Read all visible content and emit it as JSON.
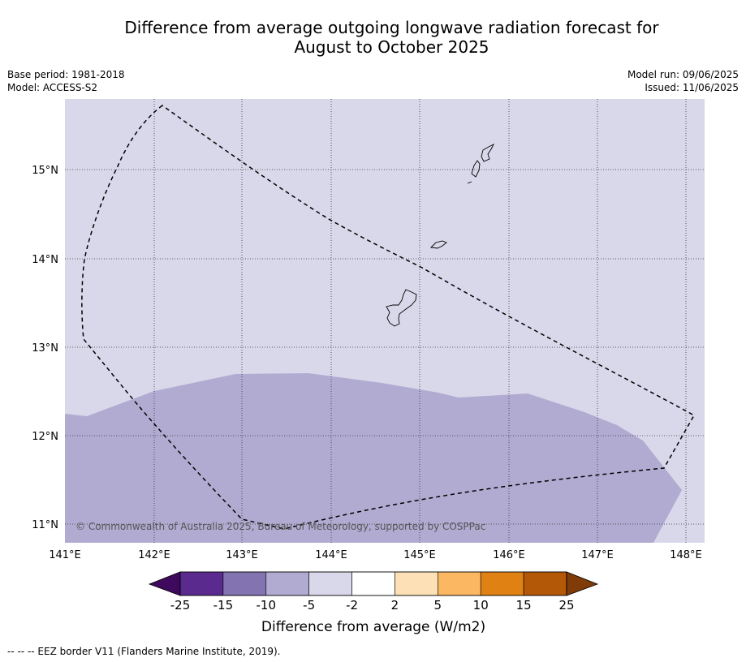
{
  "title": {
    "line1": "Difference from average outgoing longwave radiation forecast for",
    "line2": "August to October 2025"
  },
  "meta_left": {
    "base_period": "Base period: 1981-2018",
    "model": "Model: ACCESS-S2"
  },
  "meta_right": {
    "model_run": "Model run: 09/06/2025",
    "issued": "Issued: 11/06/2025"
  },
  "map": {
    "lon_range": [
      141.0,
      148.2
    ],
    "lat_range": [
      10.8,
      15.8
    ],
    "lon_ticks": [
      "141°E",
      "142°E",
      "143°E",
      "144°E",
      "145°E",
      "146°E",
      "147°E",
      "148°E"
    ],
    "lat_ticks": [
      "15°N",
      "14°N",
      "13°N",
      "12°N",
      "11°N"
    ],
    "background_color": "#d8d8ea",
    "anomaly_fill_color": "#b1abd2",
    "anomaly_class": "-10 to -5",
    "copyright": "© Commonwealth of Australia 2025, Bureau of Meteorology, supported by COSPPac"
  },
  "colorbar": {
    "title": "Difference from average (W/m2)",
    "tick_labels": [
      "-25",
      "-15",
      "-10",
      "-5",
      "-2",
      "2",
      "5",
      "10",
      "15",
      "25"
    ],
    "colors": [
      "#3f0a5e",
      "#5a2a8e",
      "#8373b0",
      "#b1abd2",
      "#d8d8ea",
      "#ffffff",
      "#fde0b6",
      "#fbb761",
      "#e08213",
      "#b35806",
      "#7f3b08"
    ]
  },
  "footnote": "--  --  -- EEZ border V11 (Flanders Marine Institute, 2019)."
}
